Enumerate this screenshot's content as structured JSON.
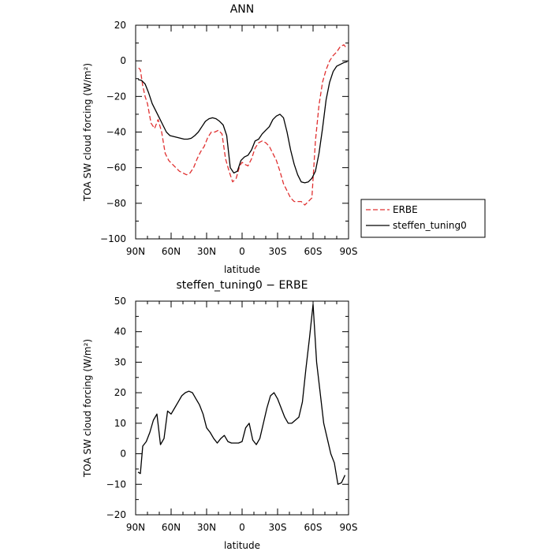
{
  "chart_data": [
    {
      "type": "line",
      "title": "ANN",
      "xlabel": "latitude",
      "ylabel": "TOA SW cloud forcing (W/m²)",
      "xlim": [
        90,
        -90
      ],
      "ylim": [
        -100,
        20
      ],
      "x_ticks": [
        90,
        60,
        30,
        0,
        -30,
        -60,
        -90
      ],
      "x_tick_labels": [
        "90N",
        "60N",
        "30N",
        "0",
        "30S",
        "60S",
        "90S"
      ],
      "y_ticks": [
        -100,
        -80,
        -60,
        -40,
        -20,
        0,
        20
      ],
      "y_tick_labels": [
        "−100",
        "−80",
        "−60",
        "−40",
        "−20",
        "0",
        "20"
      ],
      "legend": {
        "placement": "right",
        "entries": [
          "ERBE",
          "steffen_tuning0"
        ]
      },
      "series": [
        {
          "name": "ERBE",
          "color": "#e03030",
          "dash": "dashed",
          "x": [
            87.5,
            86,
            84,
            82,
            80,
            77,
            74,
            71,
            68,
            65,
            62,
            59,
            56,
            53,
            50,
            47,
            44,
            41,
            38,
            35,
            32,
            29,
            26,
            23,
            20,
            17,
            14,
            11,
            8,
            5,
            2,
            0,
            -2,
            -5,
            -8,
            -11,
            -14,
            -17,
            -20,
            -23,
            -26,
            -29,
            -32,
            -35,
            -38,
            -41,
            -44,
            -47,
            -50,
            -53,
            -56,
            -59,
            -62,
            -65,
            -68,
            -71,
            -74,
            -77,
            -80,
            -83,
            -86,
            -88.5
          ],
          "y": [
            -4,
            -5,
            -14,
            -20,
            -24,
            -35,
            -38,
            -33,
            -40,
            -52,
            -56,
            -58,
            -60,
            -62,
            -63,
            -64,
            -63,
            -60,
            -55,
            -51,
            -48,
            -43,
            -40,
            -40,
            -39,
            -41,
            -55,
            -62,
            -68,
            -66,
            -59,
            -57,
            -58,
            -59,
            -55,
            -49,
            -46,
            -45,
            -46,
            -48,
            -52,
            -56,
            -62,
            -69,
            -73,
            -77,
            -79,
            -79,
            -79,
            -81,
            -79,
            -77,
            -45,
            -25,
            -12,
            -5,
            0,
            3,
            5,
            8,
            9,
            7
          ]
        },
        {
          "name": "steffen_tuning0",
          "color": "#000000",
          "dash": "solid",
          "x": [
            88,
            85,
            82,
            79,
            76,
            73,
            70,
            67,
            64,
            61,
            58,
            55,
            52,
            49,
            46,
            43,
            40,
            37,
            34,
            31,
            28,
            25,
            22,
            19,
            16,
            13,
            10,
            7,
            4,
            1,
            -2,
            -5,
            -8,
            -11,
            -14,
            -17,
            -20,
            -23,
            -26,
            -29,
            -32,
            -35,
            -38,
            -41,
            -44,
            -47,
            -50,
            -53,
            -56,
            -59,
            -62,
            -65,
            -68,
            -71,
            -74,
            -77,
            -80,
            -83,
            -86,
            -89
          ],
          "y": [
            -10.5,
            -11,
            -13,
            -18,
            -24,
            -28,
            -32,
            -36,
            -40,
            -42,
            -42.5,
            -43,
            -43.5,
            -44,
            -44,
            -43.5,
            -42,
            -40,
            -37,
            -34,
            -32.5,
            -32,
            -32.5,
            -34,
            -36,
            -42,
            -60,
            -63,
            -62,
            -56,
            -54,
            -53,
            -50,
            -45,
            -44,
            -41,
            -39,
            -37,
            -33,
            -31,
            -30,
            -32,
            -40,
            -50,
            -58,
            -64,
            -68,
            -68.5,
            -68,
            -66,
            -62,
            -52,
            -38,
            -22,
            -12,
            -6,
            -3,
            -2,
            -1,
            -0.5
          ]
        }
      ]
    },
    {
      "type": "line",
      "title": "steffen_tuning0 − ERBE",
      "xlabel": "latitude",
      "ylabel": "TOA SW cloud forcing (W/m²)",
      "xlim": [
        90,
        -90
      ],
      "ylim": [
        -20,
        50
      ],
      "x_ticks": [
        90,
        60,
        30,
        0,
        -30,
        -60,
        -90
      ],
      "x_tick_labels": [
        "90N",
        "60N",
        "30N",
        "0",
        "30S",
        "60S",
        "90S"
      ],
      "y_ticks": [
        -20,
        -10,
        0,
        10,
        20,
        30,
        40,
        50
      ],
      "y_tick_labels": [
        "−20",
        "−10",
        "0",
        "10",
        "20",
        "30",
        "40",
        "50"
      ],
      "series": [
        {
          "color": "#000000",
          "dash": "solid",
          "x": [
            88,
            86,
            84,
            81,
            78,
            75,
            72,
            69,
            66,
            63,
            60,
            57,
            54,
            51,
            48,
            45,
            42,
            39,
            36,
            33,
            30,
            27,
            24,
            21,
            18,
            15,
            12,
            9,
            6,
            3,
            0,
            -3,
            -6,
            -9,
            -12,
            -15,
            -18,
            -21,
            -24,
            -27,
            -30,
            -33,
            -36,
            -39,
            -42,
            -45,
            -48,
            -51,
            -54,
            -57,
            -60,
            -63,
            -66,
            -69,
            -72,
            -75,
            -78,
            -81,
            -84,
            -87
          ],
          "y": [
            -6,
            -6.5,
            2.5,
            4,
            7,
            11,
            13,
            3,
            5,
            14,
            13,
            15,
            17,
            19,
            20,
            20.5,
            20,
            18,
            16,
            13,
            8.5,
            7,
            5,
            3.5,
            5,
            6,
            4,
            3.5,
            3.5,
            3.5,
            4,
            8.5,
            10,
            4.5,
            3,
            5,
            10,
            15,
            19,
            20,
            18,
            15,
            12,
            10,
            10,
            11,
            12,
            17,
            28,
            38,
            49,
            30,
            20,
            10,
            5,
            0,
            -3,
            -10,
            -9.5,
            -7
          ]
        }
      ]
    }
  ]
}
